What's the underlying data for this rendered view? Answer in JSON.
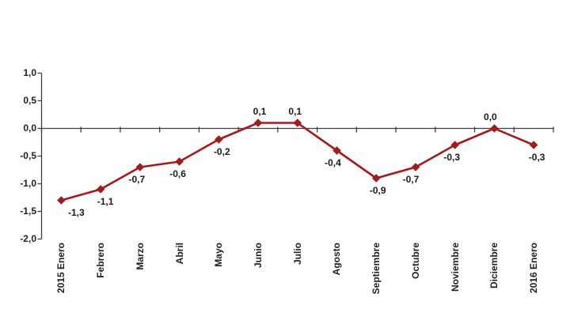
{
  "chart_data": {
    "type": "line",
    "title": "",
    "xlabel": "",
    "ylabel": "",
    "legend": "none",
    "grid": "off",
    "categories": [
      "2015 Enero",
      "Febrero",
      "Marzo",
      "Abril",
      "Mayo",
      "Junio",
      "Julio",
      "Agosto",
      "Septiembre",
      "Octubre",
      "Noviembre",
      "Diciembre",
      "2016 Enero"
    ],
    "values": [
      -1.3,
      -1.1,
      -0.7,
      -0.6,
      -0.2,
      0.1,
      0.1,
      -0.4,
      -0.9,
      -0.7,
      -0.3,
      0.0,
      -0.3
    ],
    "value_labels": [
      "-1,3",
      "-1,1",
      "-0,7",
      "-0,6",
      "-0,2",
      "0,1",
      "0,1",
      "-0,4",
      "-0,9",
      "-0,7",
      "-0,3",
      "0,0",
      "-0,3"
    ],
    "y_ticks": [
      "1,0",
      "0,5",
      "0,0",
      "-0,5",
      "-1,0",
      "-1,5",
      "-2,0"
    ],
    "y_tick_values": [
      1.0,
      0.5,
      0.0,
      -0.5,
      -1.0,
      -1.5,
      -2.0
    ],
    "ylim": [
      -2.0,
      1.0
    ],
    "colors": {
      "line": "#a31c1c",
      "marker": "#a31c1c",
      "axis": "#3f3f3f",
      "text": "#1f1f1f",
      "background": "#ffffff"
    }
  }
}
